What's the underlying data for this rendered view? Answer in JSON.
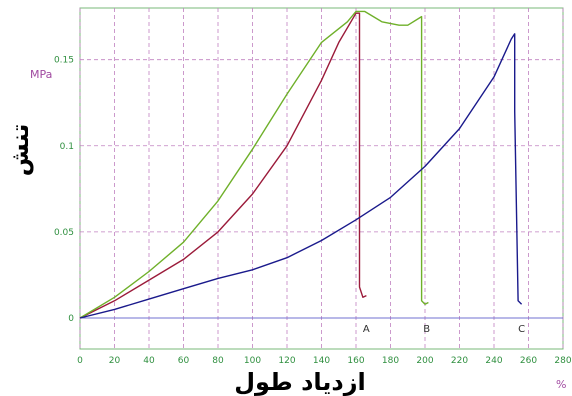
{
  "chart_data": {
    "type": "line",
    "title": "",
    "xlabel": "ازدیاد طول",
    "ylabel": "تنش",
    "x_unit": "%",
    "y_unit": "MPa",
    "xlim": [
      0,
      280
    ],
    "ylim": [
      -0.018,
      0.18
    ],
    "x_ticks": [
      "0",
      "20",
      "40",
      "60",
      "80",
      "100",
      "120",
      "140",
      "160",
      "180",
      "200",
      "220",
      "240",
      "260",
      "280"
    ],
    "y_ticks": [
      "0",
      "0.05",
      "0.1",
      "0.15"
    ],
    "grid": true,
    "series": [
      {
        "name": "A",
        "color": "#9b1b3a",
        "x": [
          0,
          20,
          40,
          60,
          80,
          100,
          120,
          140,
          150,
          160,
          162,
          162,
          164,
          166
        ],
        "y": [
          0,
          0.01,
          0.022,
          0.034,
          0.05,
          0.072,
          0.1,
          0.138,
          0.16,
          0.177,
          0.177,
          0.018,
          0.012,
          0.013
        ]
      },
      {
        "name": "B",
        "color": "#6fb02a",
        "x": [
          0,
          20,
          40,
          60,
          80,
          100,
          120,
          140,
          155,
          160,
          165,
          175,
          185,
          190,
          198,
          198,
          200,
          202
        ],
        "y": [
          0,
          0.012,
          0.027,
          0.044,
          0.068,
          0.098,
          0.13,
          0.16,
          0.172,
          0.178,
          0.178,
          0.172,
          0.17,
          0.17,
          0.175,
          0.01,
          0.008,
          0.009
        ]
      },
      {
        "name": "C",
        "color": "#1a1a8c",
        "x": [
          0,
          20,
          40,
          60,
          80,
          100,
          120,
          140,
          160,
          180,
          200,
          220,
          240,
          250,
          252,
          252,
          254,
          256
        ],
        "y": [
          0,
          0.005,
          0.011,
          0.017,
          0.023,
          0.028,
          0.035,
          0.045,
          0.057,
          0.07,
          0.088,
          0.11,
          0.14,
          0.162,
          0.165,
          0.12,
          0.01,
          0.008
        ]
      }
    ],
    "markers": [
      {
        "label": "A",
        "x": 166
      },
      {
        "label": "B",
        "x": 201
      },
      {
        "label": "C",
        "x": 256
      }
    ],
    "colors": {
      "grid": "#c080c0",
      "axis": "#7070d0",
      "frame": "#7ab87a",
      "tick_text": "#2f8f3f",
      "unit_text": "#a04aa0"
    }
  }
}
